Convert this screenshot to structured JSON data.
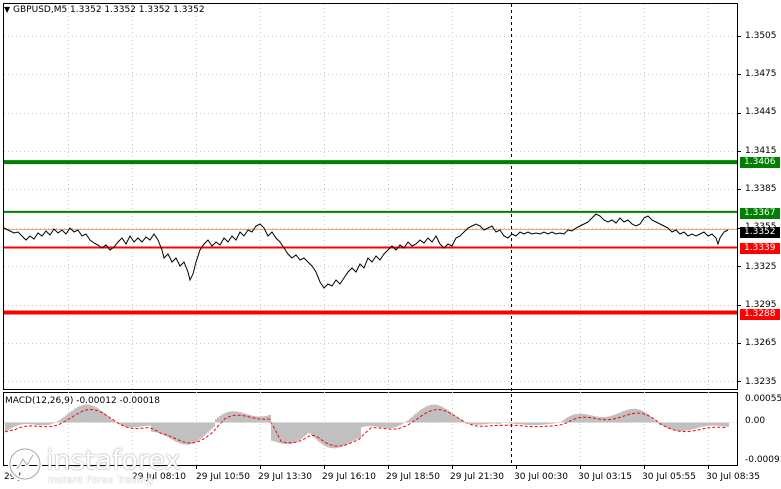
{
  "header": {
    "symbol_info": "GBPUSD,M5  1.3352 1.3352 1.3352 1.3352"
  },
  "price_axis": {
    "labels": [
      "1.3505",
      "1.3475",
      "1.3445",
      "1.3415",
      "1.3385",
      "1.3355",
      "1.3325",
      "1.3295",
      "1.3265",
      "1.3235"
    ]
  },
  "levels": [
    {
      "name": "upper-green",
      "price": 1.3406,
      "label": "1.3406",
      "color": "#008000"
    },
    {
      "name": "lower-green",
      "price": 1.3367,
      "label": "1.3367",
      "color": "#008000"
    },
    {
      "name": "upper-red",
      "price": 1.3339,
      "label": "1.3339",
      "color": "#ff0000"
    },
    {
      "name": "lower-red",
      "price": 1.3288,
      "label": "1.3288",
      "color": "#ff0000"
    }
  ],
  "current_price": {
    "label": "1.3352",
    "color": "#000000"
  },
  "ask_line_color": "#e8a878",
  "macd": {
    "title": "MACD(12,26,9) -0.00012 -0.00018",
    "axis_labels": [
      "0.00055",
      "0.00",
      "-0.00091"
    ],
    "histogram_color": "#c0c0c0",
    "signal_color": "#ff0000"
  },
  "time_axis": {
    "labels": [
      "29 Jul 08:10",
      "29 Jul 10:50",
      "29 Jul 13:30",
      "29 Jul 16:10",
      "29 Jul 18:50",
      "29 Jul 21:30",
      "30 Jul 00:30",
      "30 Jul 03:15",
      "30 Jul 05:55",
      "30 Jul 08:35"
    ],
    "partial_left": "29 J"
  },
  "watermark": {
    "brand": "instaforex",
    "tagline": "Instant Forex Trading"
  }
}
